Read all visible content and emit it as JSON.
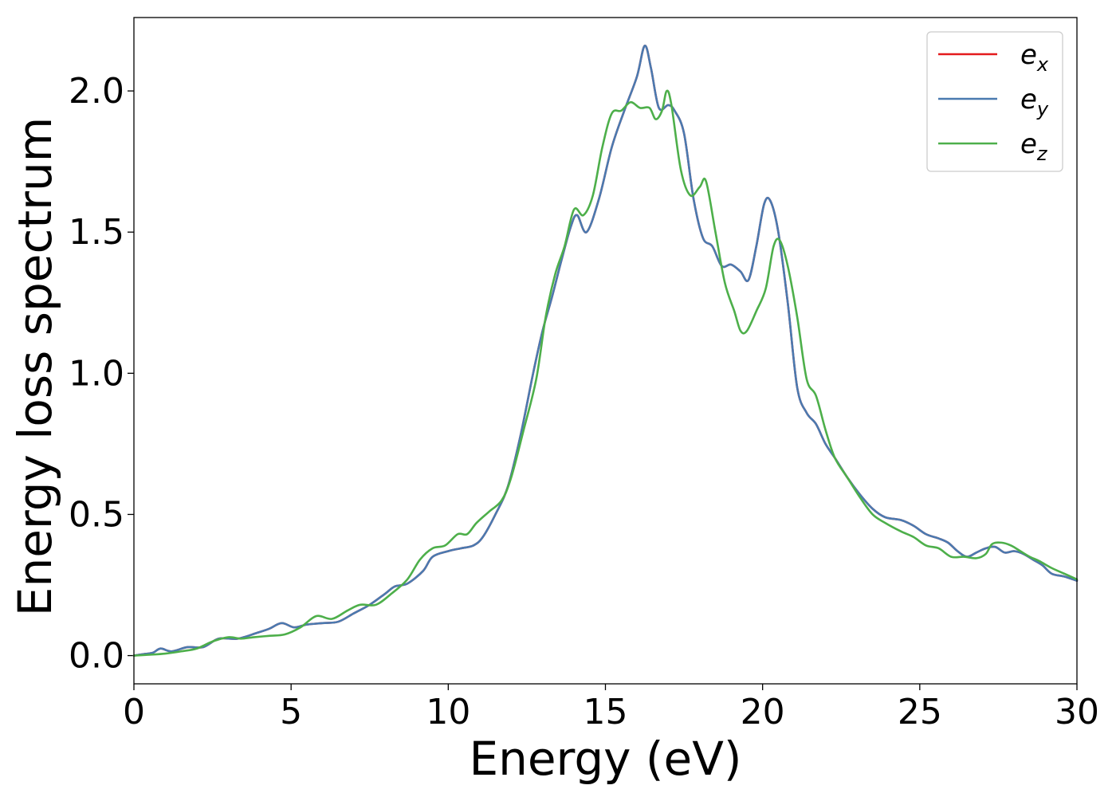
{
  "chart_data": {
    "type": "line",
    "xlabel": "Energy (eV)",
    "ylabel": "Energy loss spectrum",
    "xlim": [
      0,
      30
    ],
    "ylim": [
      -0.1,
      2.26
    ],
    "xticks": [
      0,
      5,
      10,
      15,
      20,
      25,
      30
    ],
    "yticks": [
      0.0,
      0.5,
      1.0,
      1.5,
      2.0
    ],
    "xtick_labels": [
      "0",
      "5",
      "10",
      "15",
      "20",
      "25",
      "30"
    ],
    "ytick_labels": [
      "0.0",
      "0.5",
      "1.0",
      "1.5",
      "2.0"
    ],
    "grid": false,
    "legend_position": "top-right",
    "series": [
      {
        "name": "e_x",
        "legend_base": "e",
        "legend_sub": "x",
        "color": "#e41a1c",
        "x": [
          0,
          0.3,
          0.6,
          0.85,
          1.2,
          1.7,
          2.2,
          2.7,
          3.3,
          3.9,
          4.3,
          4.7,
          5.1,
          5.5,
          6.0,
          6.5,
          7.0,
          7.5,
          8.0,
          8.3,
          8.7,
          9.2,
          9.5,
          10.0,
          10.4,
          10.8,
          11.1,
          11.5,
          11.9,
          12.3,
          12.7,
          13.0,
          13.3,
          13.6,
          13.9,
          14.1,
          14.4,
          14.8,
          15.2,
          15.6,
          16.0,
          16.25,
          16.45,
          16.7,
          17.0,
          17.2,
          17.5,
          17.8,
          18.1,
          18.4,
          18.7,
          19.0,
          19.3,
          19.55,
          19.8,
          20.05,
          20.25,
          20.5,
          20.8,
          21.1,
          21.4,
          21.7,
          22.0,
          22.3,
          22.7,
          23.1,
          23.5,
          23.9,
          24.4,
          24.8,
          25.2,
          25.6,
          25.9,
          26.2,
          26.5,
          26.8,
          27.1,
          27.4,
          27.7,
          28.0,
          28.3,
          28.6,
          28.9,
          29.2,
          29.6,
          30.0
        ],
        "y": [
          0.0,
          0.005,
          0.01,
          0.025,
          0.015,
          0.03,
          0.03,
          0.06,
          0.06,
          0.08,
          0.095,
          0.115,
          0.1,
          0.11,
          0.115,
          0.12,
          0.15,
          0.18,
          0.22,
          0.245,
          0.255,
          0.3,
          0.35,
          0.37,
          0.38,
          0.39,
          0.42,
          0.5,
          0.6,
          0.78,
          1.0,
          1.15,
          1.27,
          1.4,
          1.52,
          1.56,
          1.5,
          1.62,
          1.8,
          1.93,
          2.05,
          2.16,
          2.08,
          1.94,
          1.95,
          1.93,
          1.85,
          1.62,
          1.48,
          1.45,
          1.38,
          1.385,
          1.36,
          1.33,
          1.45,
          1.6,
          1.61,
          1.5,
          1.25,
          0.95,
          0.86,
          0.82,
          0.75,
          0.7,
          0.63,
          0.57,
          0.52,
          0.49,
          0.48,
          0.46,
          0.43,
          0.415,
          0.4,
          0.37,
          0.35,
          0.365,
          0.38,
          0.385,
          0.365,
          0.37,
          0.36,
          0.34,
          0.32,
          0.29,
          0.28,
          0.265
        ]
      },
      {
        "name": "e_y",
        "legend_base": "e",
        "legend_sub": "y",
        "color": "#4a7ab0",
        "x": [
          0,
          0.3,
          0.6,
          0.85,
          1.2,
          1.7,
          2.2,
          2.7,
          3.3,
          3.9,
          4.3,
          4.7,
          5.1,
          5.5,
          6.0,
          6.5,
          7.0,
          7.5,
          8.0,
          8.3,
          8.7,
          9.2,
          9.5,
          10.0,
          10.4,
          10.8,
          11.1,
          11.5,
          11.9,
          12.3,
          12.7,
          13.0,
          13.3,
          13.6,
          13.9,
          14.1,
          14.4,
          14.8,
          15.2,
          15.6,
          16.0,
          16.25,
          16.45,
          16.7,
          17.0,
          17.2,
          17.5,
          17.8,
          18.1,
          18.4,
          18.7,
          19.0,
          19.3,
          19.55,
          19.8,
          20.05,
          20.25,
          20.5,
          20.8,
          21.1,
          21.4,
          21.7,
          22.0,
          22.3,
          22.7,
          23.1,
          23.5,
          23.9,
          24.4,
          24.8,
          25.2,
          25.6,
          25.9,
          26.2,
          26.5,
          26.8,
          27.1,
          27.4,
          27.7,
          28.0,
          28.3,
          28.6,
          28.9,
          29.2,
          29.6,
          30.0
        ],
        "y": [
          0.0,
          0.005,
          0.01,
          0.025,
          0.015,
          0.03,
          0.03,
          0.06,
          0.06,
          0.08,
          0.095,
          0.115,
          0.1,
          0.11,
          0.115,
          0.12,
          0.15,
          0.18,
          0.22,
          0.245,
          0.255,
          0.3,
          0.35,
          0.37,
          0.38,
          0.39,
          0.42,
          0.5,
          0.6,
          0.78,
          1.0,
          1.15,
          1.27,
          1.4,
          1.52,
          1.56,
          1.5,
          1.62,
          1.8,
          1.93,
          2.05,
          2.16,
          2.08,
          1.94,
          1.95,
          1.93,
          1.85,
          1.62,
          1.48,
          1.45,
          1.38,
          1.385,
          1.36,
          1.33,
          1.45,
          1.6,
          1.61,
          1.5,
          1.25,
          0.95,
          0.86,
          0.82,
          0.75,
          0.7,
          0.63,
          0.57,
          0.52,
          0.49,
          0.48,
          0.46,
          0.43,
          0.415,
          0.4,
          0.37,
          0.35,
          0.365,
          0.38,
          0.385,
          0.365,
          0.37,
          0.36,
          0.34,
          0.32,
          0.29,
          0.28,
          0.265
        ]
      },
      {
        "name": "e_z",
        "legend_base": "e",
        "legend_sub": "z",
        "color": "#4daf4a",
        "x": [
          0,
          0.5,
          1.0,
          1.5,
          2.0,
          2.5,
          3.0,
          3.4,
          3.8,
          4.3,
          4.8,
          5.3,
          5.8,
          6.3,
          6.8,
          7.2,
          7.7,
          8.2,
          8.7,
          9.1,
          9.5,
          9.9,
          10.3,
          10.6,
          10.9,
          11.3,
          11.7,
          12.0,
          12.4,
          12.8,
          13.1,
          13.4,
          13.7,
          14.0,
          14.3,
          14.6,
          14.9,
          15.2,
          15.5,
          15.8,
          16.1,
          16.4,
          16.6,
          16.8,
          16.95,
          17.1,
          17.4,
          17.7,
          18.0,
          18.2,
          18.5,
          18.8,
          19.1,
          19.3,
          19.5,
          19.8,
          20.1,
          20.35,
          20.55,
          20.8,
          21.1,
          21.4,
          21.7,
          22.0,
          22.3,
          22.7,
          23.1,
          23.5,
          23.9,
          24.4,
          24.8,
          25.2,
          25.6,
          26.0,
          26.4,
          26.8,
          27.1,
          27.3,
          27.6,
          27.9,
          28.2,
          28.5,
          28.8,
          29.2,
          29.6,
          30.0
        ],
        "y": [
          0.0,
          0.003,
          0.007,
          0.015,
          0.025,
          0.05,
          0.065,
          0.06,
          0.065,
          0.07,
          0.075,
          0.1,
          0.14,
          0.13,
          0.16,
          0.18,
          0.18,
          0.22,
          0.27,
          0.34,
          0.38,
          0.39,
          0.43,
          0.43,
          0.47,
          0.51,
          0.55,
          0.63,
          0.8,
          0.98,
          1.2,
          1.35,
          1.45,
          1.58,
          1.56,
          1.63,
          1.8,
          1.92,
          1.93,
          1.96,
          1.94,
          1.94,
          1.9,
          1.93,
          2.0,
          1.95,
          1.72,
          1.63,
          1.66,
          1.68,
          1.5,
          1.32,
          1.22,
          1.15,
          1.15,
          1.22,
          1.3,
          1.45,
          1.47,
          1.38,
          1.2,
          0.98,
          0.92,
          0.8,
          0.7,
          0.63,
          0.56,
          0.5,
          0.47,
          0.44,
          0.42,
          0.39,
          0.38,
          0.35,
          0.35,
          0.345,
          0.36,
          0.395,
          0.4,
          0.39,
          0.37,
          0.35,
          0.335,
          0.31,
          0.29,
          0.27
        ]
      }
    ]
  }
}
